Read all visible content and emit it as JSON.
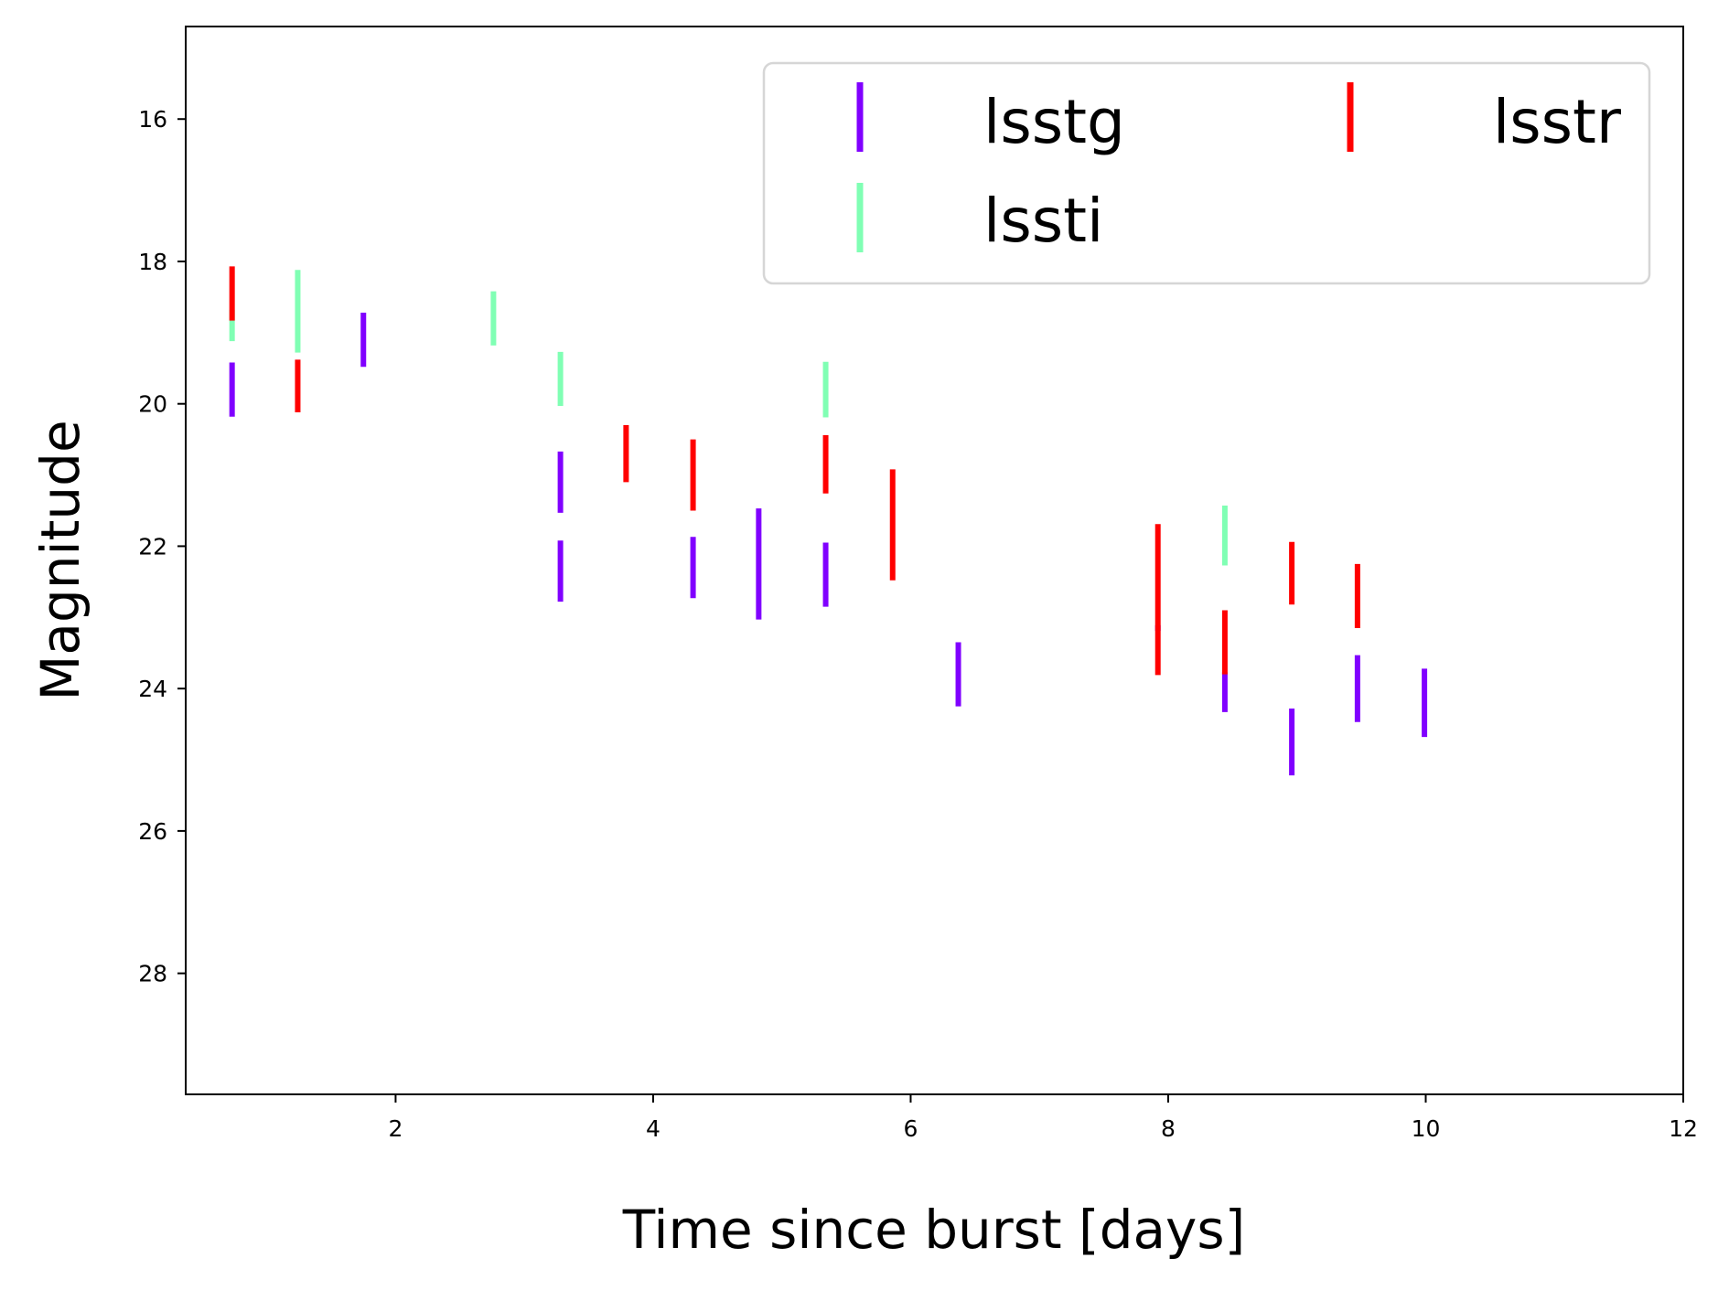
{
  "chart_data": {
    "type": "scatter",
    "title": "",
    "xlabel": "Time since burst [days]",
    "ylabel": "Magnitude",
    "xlim": [
      0.37,
      12.0
    ],
    "ylim": [
      29.7,
      14.7
    ],
    "y_inverted": true,
    "grid": false,
    "xticks": [
      2,
      4,
      6,
      8,
      10,
      12
    ],
    "yticks": [
      16,
      18,
      20,
      22,
      24,
      26,
      28
    ],
    "legend": {
      "position": "top-right",
      "columns": 2,
      "order": [
        "lsstg",
        "lsstr",
        "lssti"
      ]
    },
    "marker_style": "vertical error bars",
    "series": [
      {
        "name": "lsstg",
        "color": "#8000ff",
        "points": [
          {
            "x": 0.73,
            "y": 19.8,
            "yerr": 0.38
          },
          {
            "x": 1.75,
            "y": 19.1,
            "yerr": 0.38
          },
          {
            "x": 3.28,
            "y": 21.1,
            "yerr": 0.43
          },
          {
            "x": 3.28,
            "y": 22.35,
            "yerr": 0.43
          },
          {
            "x": 4.31,
            "y": 22.3,
            "yerr": 0.43
          },
          {
            "x": 4.82,
            "y": 22.25,
            "yerr": 0.78
          },
          {
            "x": 5.34,
            "y": 22.4,
            "yerr": 0.45
          },
          {
            "x": 6.37,
            "y": 23.8,
            "yerr": 0.45
          },
          {
            "x": 7.92,
            "y": 23.15,
            "yerr": 0.04
          },
          {
            "x": 8.44,
            "y": 24.05,
            "yerr": 0.28
          },
          {
            "x": 8.96,
            "y": 24.75,
            "yerr": 0.47
          },
          {
            "x": 9.47,
            "y": 24.0,
            "yerr": 0.47
          },
          {
            "x": 9.99,
            "y": 24.2,
            "yerr": 0.48
          }
        ]
      },
      {
        "name": "lssti",
        "color": "#80ffb4",
        "points": [
          {
            "x": 0.73,
            "y": 18.9,
            "yerr": 0.22
          },
          {
            "x": 1.24,
            "y": 18.7,
            "yerr": 0.58
          },
          {
            "x": 2.76,
            "y": 18.8,
            "yerr": 0.38
          },
          {
            "x": 3.28,
            "y": 19.65,
            "yerr": 0.38
          },
          {
            "x": 5.34,
            "y": 19.8,
            "yerr": 0.39
          },
          {
            "x": 8.44,
            "y": 21.85,
            "yerr": 0.42
          }
        ]
      },
      {
        "name": "lsstr",
        "color": "#ff0000",
        "points": [
          {
            "x": 0.73,
            "y": 18.45,
            "yerr": 0.38
          },
          {
            "x": 1.24,
            "y": 19.75,
            "yerr": 0.37
          },
          {
            "x": 3.79,
            "y": 20.7,
            "yerr": 0.4
          },
          {
            "x": 4.31,
            "y": 21.0,
            "yerr": 0.5
          },
          {
            "x": 5.34,
            "y": 20.85,
            "yerr": 0.41
          },
          {
            "x": 5.86,
            "y": 21.7,
            "yerr": 0.78
          },
          {
            "x": 7.92,
            "y": 22.75,
            "yerr": 1.06
          },
          {
            "x": 8.44,
            "y": 23.35,
            "yerr": 0.45
          },
          {
            "x": 8.96,
            "y": 22.38,
            "yerr": 0.44
          },
          {
            "x": 9.47,
            "y": 22.7,
            "yerr": 0.45
          }
        ]
      }
    ]
  }
}
